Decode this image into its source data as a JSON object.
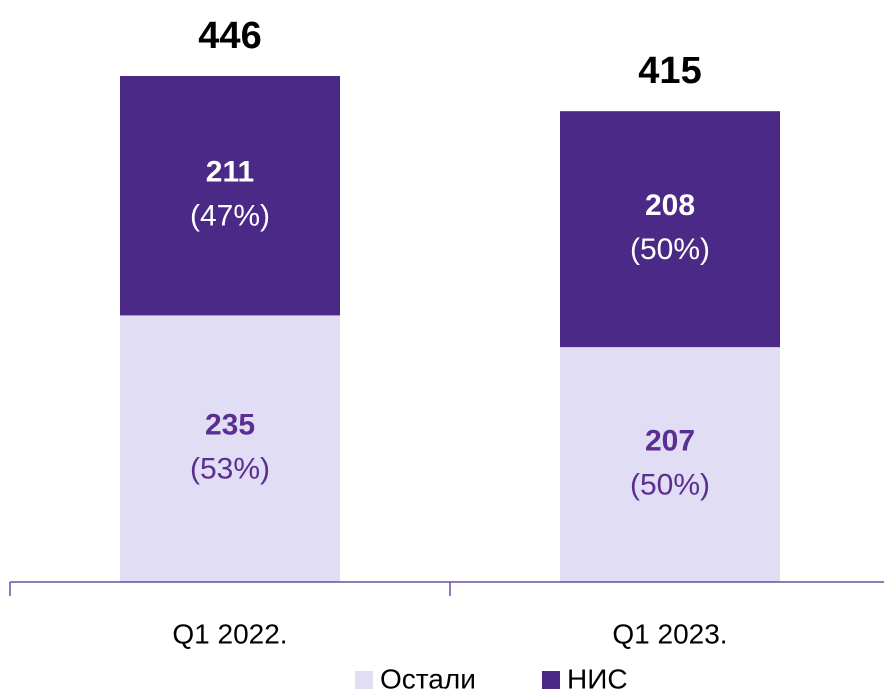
{
  "chart_data": {
    "type": "stacked_bar",
    "categories": [
      "Q1 2022.",
      "Q1 2023."
    ],
    "series": [
      {
        "name": "Остали",
        "color": "#e1ddf4",
        "label_color": "#5b2e91",
        "values": [
          235,
          207
        ],
        "share_labels": [
          "(53%)",
          "(50%)"
        ]
      },
      {
        "name": "НИС",
        "color": "#4b2a87",
        "label_color": "#ffffff",
        "values": [
          211,
          208
        ],
        "share_labels": [
          "(47%)",
          "(50%)"
        ]
      }
    ],
    "totals": [
      446,
      415
    ]
  }
}
